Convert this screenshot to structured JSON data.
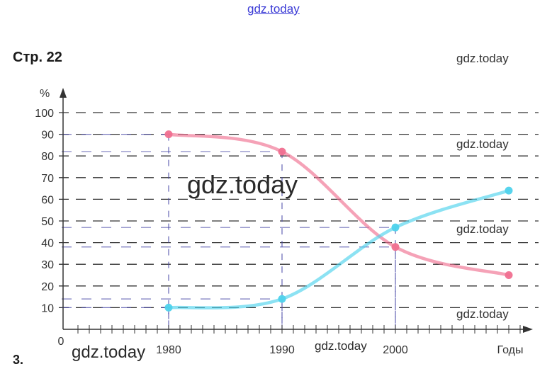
{
  "page": {
    "label": "Стр. 22",
    "task_number": "3."
  },
  "watermarks": {
    "top": "gdz.today",
    "right_1": "gdz.today",
    "right_2": "gdz.today",
    "right_3": "gdz.today",
    "right_4": "gdz.today",
    "center": "gdz.today",
    "bottom_left": "gdz.today",
    "bottom_middle": "gdz.today"
  },
  "colors": {
    "pink_series": "#f07090",
    "cyan_series": "#4fd2ec",
    "guide_lines": "#4a4aa8",
    "grid": "#333333",
    "watermark_top": "#3b3bd6"
  },
  "chart_data": {
    "type": "line",
    "xlabel": "Годы",
    "ylabel": "%",
    "x_origin_label": "0",
    "x_ticks": [
      1980,
      1990,
      2000
    ],
    "y_ticks": [
      10,
      20,
      30,
      40,
      50,
      60,
      70,
      80,
      90,
      100
    ],
    "xlim": [
      1971,
      2011
    ],
    "ylim": [
      0,
      105
    ],
    "grid": "horizontal dashed lines at every 10%",
    "series": [
      {
        "color": "pink",
        "points": [
          [
            1980,
            90
          ],
          [
            1990,
            82
          ],
          [
            2000,
            38
          ],
          [
            2010,
            25
          ]
        ]
      },
      {
        "color": "cyan",
        "points": [
          [
            1980,
            10
          ],
          [
            1990,
            14
          ],
          [
            2000,
            47
          ],
          [
            2010,
            64
          ]
        ]
      }
    ]
  }
}
